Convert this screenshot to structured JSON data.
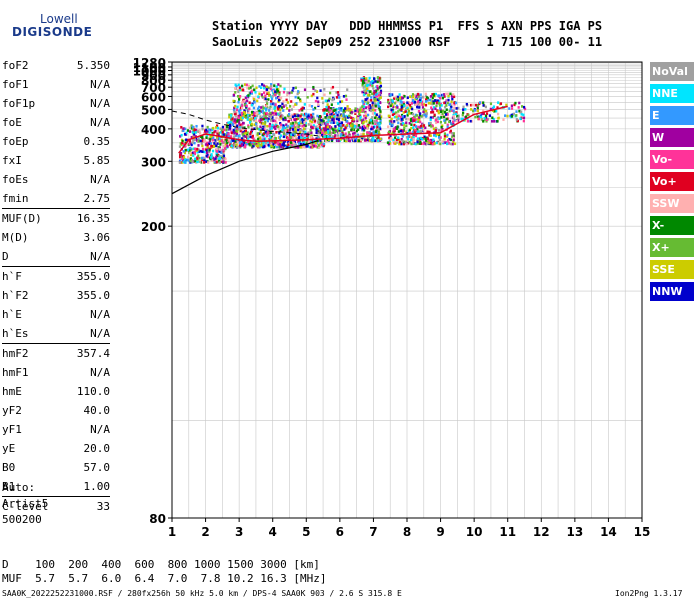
{
  "logo": {
    "line1": "Lowell",
    "line2": "DIGISONDE"
  },
  "header": {
    "row1": "Station YYYY DAY   DDD HHMMSS P1  FFS S AXN PPS IGA PS",
    "row2": "SaoLuis 2022 Sep09 252 231000 RSF     1 715 100 00- 11"
  },
  "params": [
    {
      "name": "foF2",
      "value": "5.350"
    },
    {
      "name": "foF1",
      "value": "N/A"
    },
    {
      "name": "foF1p",
      "value": "N/A"
    },
    {
      "name": "foE",
      "value": "N/A"
    },
    {
      "name": "foEp",
      "value": "0.35"
    },
    {
      "name": "fxI",
      "value": "5.85"
    },
    {
      "name": "foEs",
      "value": "N/A"
    },
    {
      "name": "fmin",
      "value": "2.75"
    },
    {
      "name": "MUF(D)",
      "value": "16.35",
      "sep": true
    },
    {
      "name": "M(D)",
      "value": "3.06"
    },
    {
      "name": "D",
      "value": "N/A"
    },
    {
      "name": "h`F",
      "value": "355.0",
      "sep": true
    },
    {
      "name": "h`F2",
      "value": "355.0"
    },
    {
      "name": "h`E",
      "value": "N/A"
    },
    {
      "name": "h`Es",
      "value": "N/A"
    },
    {
      "name": "hmF2",
      "value": "357.4",
      "sep": true
    },
    {
      "name": "hmF1",
      "value": "N/A"
    },
    {
      "name": "hmE",
      "value": "110.0"
    },
    {
      "name": "yF2",
      "value": "40.0"
    },
    {
      "name": "yF1",
      "value": "N/A"
    },
    {
      "name": "yE",
      "value": "20.0"
    },
    {
      "name": "B0",
      "value": "57.0"
    },
    {
      "name": "B1",
      "value": "1.00"
    },
    {
      "name": "C-level",
      "value": "33",
      "sep": true
    }
  ],
  "auto": {
    "line1": "Auto:",
    "line2": "Artist5",
    "line3": "500200"
  },
  "legend": [
    {
      "label": "NoVal",
      "color": "#a0a0a0"
    },
    {
      "label": "NNE",
      "color": "#00e5ff"
    },
    {
      "label": "E",
      "color": "#3399ff"
    },
    {
      "label": "W",
      "color": "#a000a0"
    },
    {
      "label": "Vo-",
      "color": "#ff3399"
    },
    {
      "label": "Vo+",
      "color": "#e00020"
    },
    {
      "label": "SSW",
      "color": "#ffb0b0"
    },
    {
      "label": "X-",
      "color": "#008800"
    },
    {
      "label": "X+",
      "color": "#66bb33"
    },
    {
      "label": "SSE",
      "color": "#cccc00"
    },
    {
      "label": "NNW",
      "color": "#0000cc"
    }
  ],
  "bottom": {
    "row1": "D    100  200  400  600  800 1000 1500 3000 [km]",
    "row2": "MUF  5.7  5.7  6.0  6.4  7.0  7.8 10.2 16.3 [MHz]"
  },
  "footer": {
    "left": "SAA0K_2022252231000.RSF / 280fx256h 50 kHz 5.0 km / DPS-4 SAA0K 903 / 2.6 S 315.8 E",
    "right": "Ion2Png 1.3.17"
  },
  "chart_data": {
    "type": "scatter",
    "title": "",
    "xlabel": "",
    "ylabel": "",
    "xlim": [
      1,
      15
    ],
    "ylim": [
      80,
      1280
    ],
    "x_ticks": [
      1,
      2,
      3,
      4,
      5,
      6,
      7,
      8,
      9,
      10,
      11,
      12,
      13,
      14,
      15
    ],
    "y_ticks": [
      80,
      200,
      300,
      400,
      500,
      600,
      700,
      800,
      900,
      1000,
      1100,
      1280
    ],
    "y_scale": "reciprocal",
    "grid": true,
    "series": [
      {
        "kind": "ionogram-trace",
        "points": [
          [
            1.2,
            320
          ],
          [
            1.5,
            360
          ],
          [
            2.0,
            380
          ],
          [
            2.5,
            370
          ],
          [
            3.0,
            360
          ],
          [
            3.5,
            355
          ],
          [
            4.0,
            356
          ],
          [
            5.0,
            360
          ],
          [
            6.0,
            365
          ],
          [
            7.0,
            375
          ],
          [
            8.0,
            380
          ],
          [
            9.0,
            385
          ],
          [
            10.0,
            470
          ],
          [
            11.0,
            520
          ]
        ]
      },
      {
        "kind": "profile",
        "points": [
          [
            1.0,
            240
          ],
          [
            2.0,
            270
          ],
          [
            3.0,
            300
          ],
          [
            4.0,
            325
          ],
          [
            5.0,
            345
          ],
          [
            5.35,
            357
          ]
        ]
      },
      {
        "kind": "profile-dashed",
        "points": [
          [
            1.0,
            490
          ],
          [
            1.5,
            470
          ],
          [
            2.0,
            440
          ],
          [
            2.5,
            420
          ],
          [
            3.0,
            405
          ],
          [
            4.0,
            390
          ],
          [
            5.0,
            380
          ],
          [
            5.5,
            370
          ]
        ]
      }
    ]
  }
}
